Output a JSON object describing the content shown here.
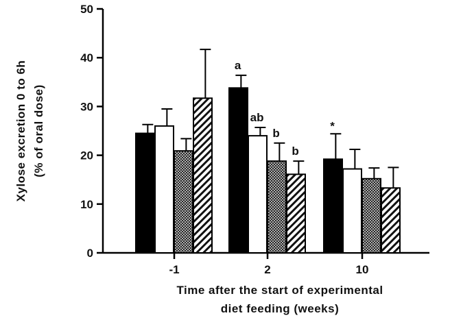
{
  "chart_data": {
    "type": "bar",
    "categories": [
      "-1",
      "2",
      "10"
    ],
    "ylabel_lines": [
      "Xylose excretion 0 to 6h",
      "(% of oral dose)"
    ],
    "xlabel_lines": [
      "Time after the start of experimental",
      "diet feeding (weeks)"
    ],
    "ylim": [
      0,
      50
    ],
    "yticks": [
      0,
      10,
      20,
      30,
      40,
      50
    ],
    "series": [
      {
        "pattern": "solid-black",
        "values": [
          24.5,
          33.8,
          19.2
        ],
        "errors": [
          1.8,
          2.6,
          5.2
        ]
      },
      {
        "pattern": "white",
        "values": [
          26.0,
          24.0,
          17.2
        ],
        "errors": [
          3.5,
          1.7,
          4.0
        ]
      },
      {
        "pattern": "crosshatch",
        "values": [
          20.9,
          18.8,
          15.2
        ],
        "errors": [
          2.5,
          3.7,
          2.2
        ]
      },
      {
        "pattern": "diagonal",
        "values": [
          31.7,
          16.1,
          13.3
        ],
        "errors": [
          10.0,
          2.7,
          4.2
        ]
      }
    ],
    "annotations": [
      {
        "category": 1,
        "series": 0,
        "text": "a"
      },
      {
        "category": 1,
        "series": 1,
        "text": "ab"
      },
      {
        "category": 1,
        "series": 2,
        "text": "b"
      },
      {
        "category": 1,
        "series": 3,
        "text": "b"
      },
      {
        "category": 2,
        "series": 0,
        "text": "*"
      }
    ]
  }
}
